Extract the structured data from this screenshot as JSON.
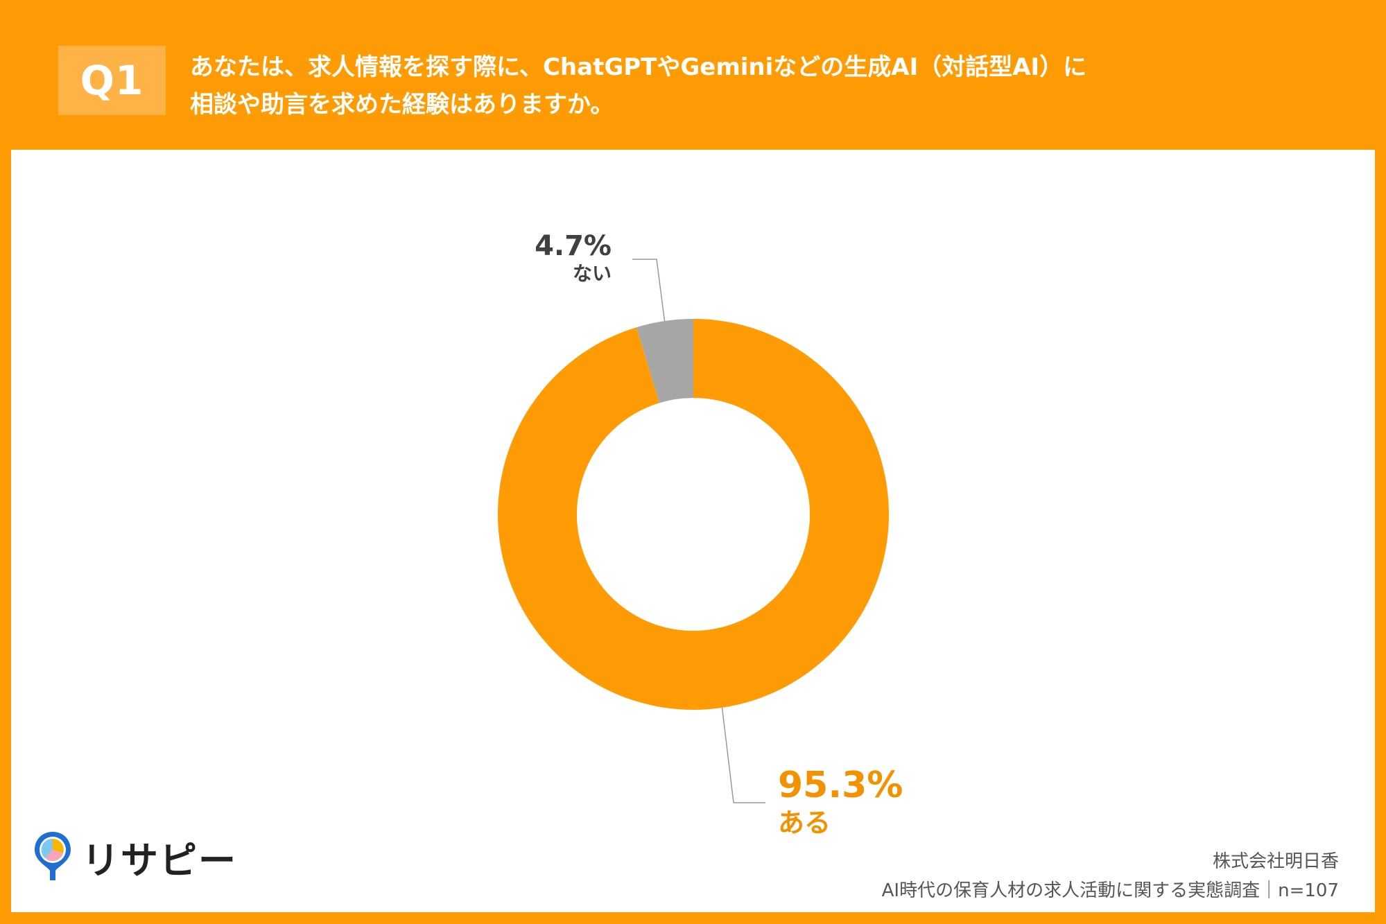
{
  "header": {
    "badge": "Q1",
    "question_line1": "あなたは、求人情報を探す際に、ChatGPTやGeminiなどの生成AI（対話型AI）に",
    "question_line2": "相談や助言を求めた経験はありますか。"
  },
  "chart_data": {
    "type": "pie",
    "donut": true,
    "start_angle_deg": 0,
    "direction": "clockwise",
    "slices": [
      {
        "label": "ある",
        "value": 95.3,
        "display": "95.3%",
        "color": "#FF9C05",
        "label_color": "#F39200"
      },
      {
        "label": "ない",
        "value": 4.7,
        "display": "4.7%",
        "color": "#A6A6A6",
        "label_color": "#404040"
      }
    ]
  },
  "logo": {
    "text": "リサピー"
  },
  "footer": {
    "company": "株式会社明日香",
    "survey": "AI時代の保育人材の求人活動に関する実態調査｜n=107"
  }
}
